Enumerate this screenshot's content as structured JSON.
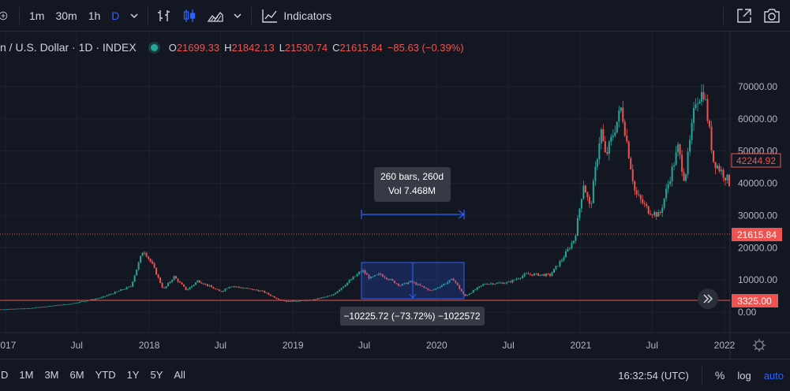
{
  "toolbar": {
    "intervals": [
      "1m",
      "30m",
      "1h",
      "D"
    ],
    "active_interval": "D",
    "indicators_label": "Indicators"
  },
  "legend": {
    "title": "n / U.S. Dollar · 1D · INDEX",
    "o_label": "O",
    "o_val": "21699.33",
    "h_label": "H",
    "h_val": "21842.13",
    "l_label": "L",
    "l_val": "21530.74",
    "c_label": "C",
    "c_val": "21615.84",
    "change": "−85.63 (−0.39%)"
  },
  "price_axis": {
    "ticks": [
      "70000.00",
      "60000.00",
      "50000.00",
      "40000.00",
      "30000.00",
      "20000.00",
      "10000.00",
      "0.00"
    ],
    "current_label": "42244.92",
    "last_label": "21615.84",
    "line_label": "3325.00"
  },
  "time_axis": {
    "ticks": [
      "2017",
      "Jul",
      "2018",
      "Jul",
      "2019",
      "Jul",
      "2020",
      "Jul",
      "2021",
      "Jul",
      "2022"
    ]
  },
  "measure": {
    "bars_text": "260 bars, 260d",
    "vol_text": "Vol 7.468M",
    "change_text": "−10225.72 (−73.72%) −1022572"
  },
  "bottom": {
    "ranges": [
      "D",
      "1M",
      "3M",
      "6M",
      "YTD",
      "1Y",
      "5Y",
      "All"
    ],
    "clock": "16:32:54 (UTC)",
    "percent": "%",
    "log": "log",
    "auto": "auto"
  },
  "colors": {
    "up": "#26a69a",
    "down": "#ef5350",
    "accent": "#2962ff",
    "bg": "#131722"
  },
  "chart_data": {
    "type": "candlestick",
    "title": "",
    "xlabel": "",
    "ylabel": "",
    "ylim": [
      -5000,
      75000
    ],
    "x_ticks": [
      "2017",
      "Jul",
      "2018",
      "Jul",
      "2019",
      "Jul",
      "2020",
      "Jul",
      "2021",
      "Jul",
      "2022"
    ],
    "y_ticks": [
      0,
      10000,
      20000,
      30000,
      40000,
      50000,
      60000,
      70000
    ],
    "anchors": [
      {
        "date": "2016-11-15",
        "price": 700
      },
      {
        "date": "2017-03-01",
        "price": 1200
      },
      {
        "date": "2017-06-15",
        "price": 2600
      },
      {
        "date": "2017-09-01",
        "price": 4500
      },
      {
        "date": "2017-11-15",
        "price": 8000
      },
      {
        "date": "2017-12-17",
        "price": 19500
      },
      {
        "date": "2018-01-10",
        "price": 14500
      },
      {
        "date": "2018-02-06",
        "price": 7000
      },
      {
        "date": "2018-03-05",
        "price": 11000
      },
      {
        "date": "2018-04-06",
        "price": 6800
      },
      {
        "date": "2018-05-05",
        "price": 9800
      },
      {
        "date": "2018-07-01",
        "price": 6300
      },
      {
        "date": "2018-07-25",
        "price": 8200
      },
      {
        "date": "2018-10-15",
        "price": 6500
      },
      {
        "date": "2018-11-20",
        "price": 4300
      },
      {
        "date": "2018-12-15",
        "price": 3300
      },
      {
        "date": "2019-02-15",
        "price": 3700
      },
      {
        "date": "2019-04-10",
        "price": 5200
      },
      {
        "date": "2019-06-26",
        "price": 13000
      },
      {
        "date": "2019-07-15",
        "price": 10500
      },
      {
        "date": "2019-08-10",
        "price": 11800
      },
      {
        "date": "2019-09-30",
        "price": 8300
      },
      {
        "date": "2019-10-27",
        "price": 9500
      },
      {
        "date": "2019-12-18",
        "price": 6600
      },
      {
        "date": "2020-02-12",
        "price": 10300
      },
      {
        "date": "2020-03-12",
        "price": 4900
      },
      {
        "date": "2020-05-01",
        "price": 8800
      },
      {
        "date": "2020-07-01",
        "price": 9200
      },
      {
        "date": "2020-08-15",
        "price": 11800
      },
      {
        "date": "2020-10-15",
        "price": 11500
      },
      {
        "date": "2020-11-15",
        "price": 16500
      },
      {
        "date": "2020-12-17",
        "price": 23000
      },
      {
        "date": "2021-01-08",
        "price": 40000
      },
      {
        "date": "2021-01-25",
        "price": 32000
      },
      {
        "date": "2021-02-21",
        "price": 57000
      },
      {
        "date": "2021-03-05",
        "price": 48000
      },
      {
        "date": "2021-04-14",
        "price": 63500
      },
      {
        "date": "2021-05-19",
        "price": 37000
      },
      {
        "date": "2021-06-22",
        "price": 31500
      },
      {
        "date": "2021-07-20",
        "price": 30000
      },
      {
        "date": "2021-09-05",
        "price": 51000
      },
      {
        "date": "2021-09-22",
        "price": 41000
      },
      {
        "date": "2021-10-20",
        "price": 66000
      },
      {
        "date": "2021-11-10",
        "price": 68500
      },
      {
        "date": "2021-12-04",
        "price": 47000
      },
      {
        "date": "2022-01-10",
        "price": 41000
      },
      {
        "date": "2022-01-25",
        "price": 36500
      },
      {
        "date": "2022-02-10",
        "price": 44000
      },
      {
        "date": "2022-02-25",
        "price": 42244.92
      }
    ]
  }
}
